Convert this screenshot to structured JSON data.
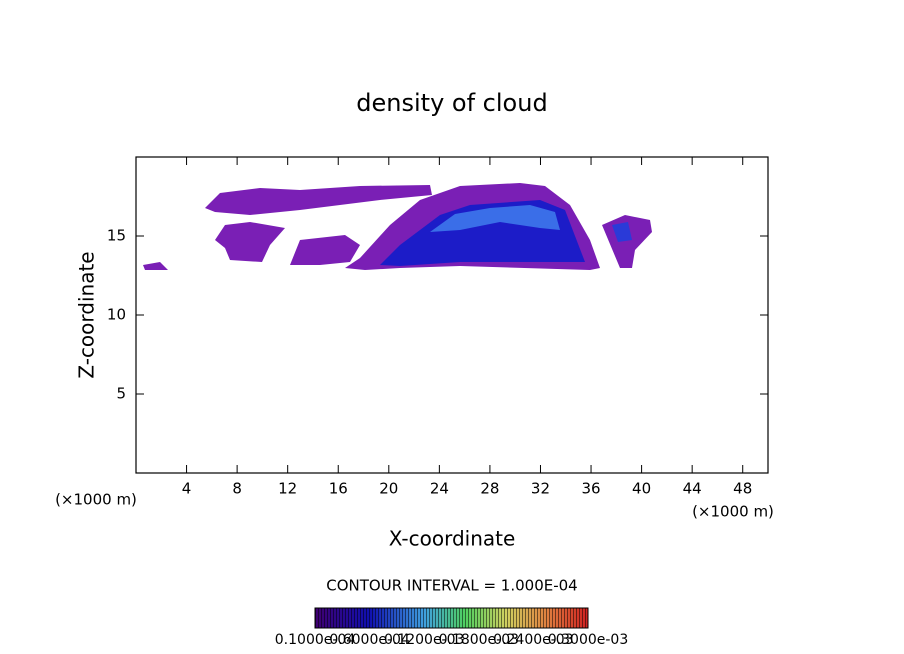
{
  "chart_data": {
    "type": "contour",
    "title": "density of cloud",
    "x_label": "X-coordinate",
    "y_label": "Z-coordinate",
    "x_unit_left": "(×1000 m)",
    "x_unit_right": "(×1000 m)",
    "xlim": [
      0,
      50
    ],
    "xticks": [
      4,
      8,
      12,
      16,
      20,
      24,
      28,
      32,
      36,
      40,
      44,
      48
    ],
    "ylim": [
      0,
      20
    ],
    "yticks": [
      5,
      10,
      15
    ],
    "contour_interval": "CONTOUR INTERVAL = 1.000E-04",
    "colorbar_labels": [
      "0.1000e-04",
      "0.6000e-04",
      "0.1200e-03",
      "0.1800e-03",
      "0.2400e-03",
      "0.3000e-03"
    ]
  }
}
